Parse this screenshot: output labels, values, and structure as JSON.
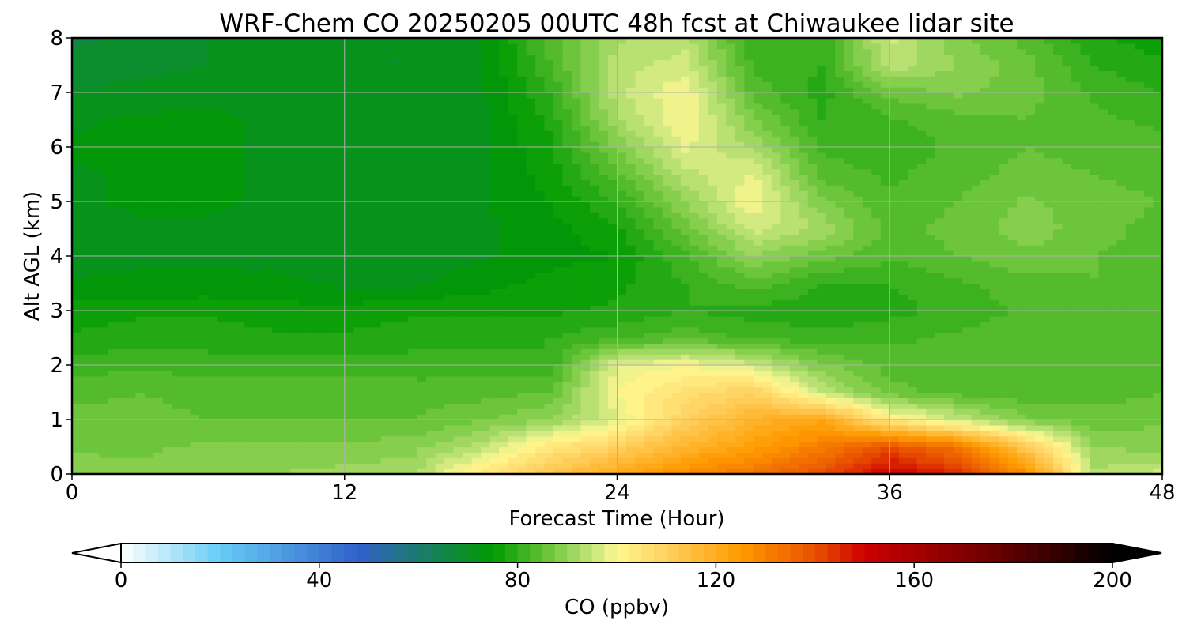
{
  "chart_data": {
    "type": "heatmap",
    "title": "WRF-Chem CO  20250205 00UTC 48h fcst at Chiwaukee lidar site",
    "xlabel": "Forecast Time (Hour)",
    "ylabel": "Alt AGL (km)",
    "xlim": [
      0,
      48
    ],
    "ylim": [
      0,
      8
    ],
    "xticks": [
      "0",
      "12",
      "24",
      "36",
      "48"
    ],
    "yticks": [
      "0",
      "1",
      "2",
      "3",
      "4",
      "5",
      "6",
      "7",
      "8"
    ],
    "grid": true,
    "colorbar": {
      "label": "CO  (ppbv)",
      "range": [
        0,
        200
      ],
      "ticks": [
        "0",
        "40",
        "80",
        "120",
        "160",
        "200"
      ],
      "extend": "both",
      "stops": [
        {
          "v": 0,
          "c": "#ffffff"
        },
        {
          "v": 20,
          "c": "#66ccf5"
        },
        {
          "v": 48,
          "c": "#3060c8"
        },
        {
          "v": 60,
          "c": "#1c7a6e"
        },
        {
          "v": 75,
          "c": "#009a00"
        },
        {
          "v": 86,
          "c": "#6ac43a"
        },
        {
          "v": 95,
          "c": "#c4e47c"
        },
        {
          "v": 100,
          "c": "#fff890"
        },
        {
          "v": 110,
          "c": "#ffd060"
        },
        {
          "v": 125,
          "c": "#ff9a00"
        },
        {
          "v": 140,
          "c": "#e85000"
        },
        {
          "v": 150,
          "c": "#cc0000"
        },
        {
          "v": 175,
          "c": "#700000"
        },
        {
          "v": 200,
          "c": "#000000"
        }
      ]
    },
    "field": {
      "x_hours": [
        0,
        3,
        6,
        9,
        12,
        15,
        18,
        21,
        24,
        27,
        30,
        33,
        36,
        39,
        42,
        45,
        48
      ],
      "y_km": [
        0,
        0.5,
        1,
        1.5,
        2,
        2.5,
        3,
        3.5,
        4,
        4.5,
        5,
        5.5,
        6,
        6.5,
        7,
        7.5,
        8
      ],
      "co_ppbv": [
        [
          89,
          88,
          89,
          90,
          91,
          92,
          104,
          113,
          121,
          128,
          133,
          140,
          151,
          145,
          128,
          93,
          96
        ],
        [
          87,
          87,
          88,
          88,
          88,
          89,
          94,
          104,
          110,
          118,
          124,
          131,
          140,
          133,
          112,
          90,
          89
        ],
        [
          86,
          86,
          85,
          85,
          85,
          85,
          87,
          90,
          97,
          110,
          118,
          122,
          103,
          95,
          88,
          86,
          87
        ],
        [
          84,
          85,
          84,
          84,
          84,
          84,
          84,
          85,
          100,
          106,
          110,
          95,
          86,
          84,
          83,
          84,
          85
        ],
        [
          81,
          82,
          81,
          81,
          81,
          81,
          81,
          80,
          98,
          100,
          96,
          88,
          84,
          83,
          84,
          85,
          84
        ],
        [
          78,
          79,
          79,
          78,
          78,
          79,
          79,
          80,
          82,
          84,
          82,
          81,
          82,
          83,
          84,
          85,
          84
        ],
        [
          76,
          77,
          77,
          76,
          76,
          77,
          77,
          77,
          78,
          80,
          79,
          78,
          79,
          81,
          83,
          84,
          83
        ],
        [
          73,
          73,
          73,
          73,
          72,
          72,
          74,
          76,
          77,
          80,
          84,
          80,
          80,
          82,
          84,
          85,
          84
        ],
        [
          71,
          72,
          72,
          72,
          71,
          71,
          72,
          74,
          75,
          82,
          90,
          86,
          83,
          85,
          87,
          85,
          84
        ],
        [
          71,
          72,
          72,
          72,
          71,
          71,
          72,
          74,
          77,
          86,
          96,
          92,
          84,
          86,
          89,
          86,
          84
        ],
        [
          72,
          73,
          73,
          72,
          72,
          71,
          72,
          75,
          80,
          90,
          100,
          88,
          83,
          85,
          88,
          86,
          85
        ],
        [
          72,
          73,
          73,
          72,
          72,
          71,
          72,
          76,
          84,
          94,
          98,
          84,
          82,
          84,
          86,
          85,
          84
        ],
        [
          73,
          73,
          73,
          72,
          71,
          71,
          72,
          77,
          88,
          98,
          92,
          82,
          81,
          83,
          85,
          84,
          83
        ],
        [
          72,
          73,
          73,
          72,
          71,
          71,
          72,
          78,
          92,
          100,
          88,
          80,
          82,
          84,
          85,
          83,
          82
        ],
        [
          70,
          71,
          72,
          72,
          71,
          71,
          72,
          80,
          94,
          100,
          84,
          79,
          86,
          88,
          86,
          82,
          80
        ],
        [
          68,
          69,
          70,
          71,
          70,
          70,
          72,
          82,
          94,
          96,
          82,
          80,
          94,
          90,
          86,
          80,
          78
        ],
        [
          67,
          68,
          70,
          70,
          70,
          70,
          72,
          84,
          92,
          94,
          80,
          80,
          96,
          88,
          84,
          78,
          76
        ]
      ]
    }
  }
}
